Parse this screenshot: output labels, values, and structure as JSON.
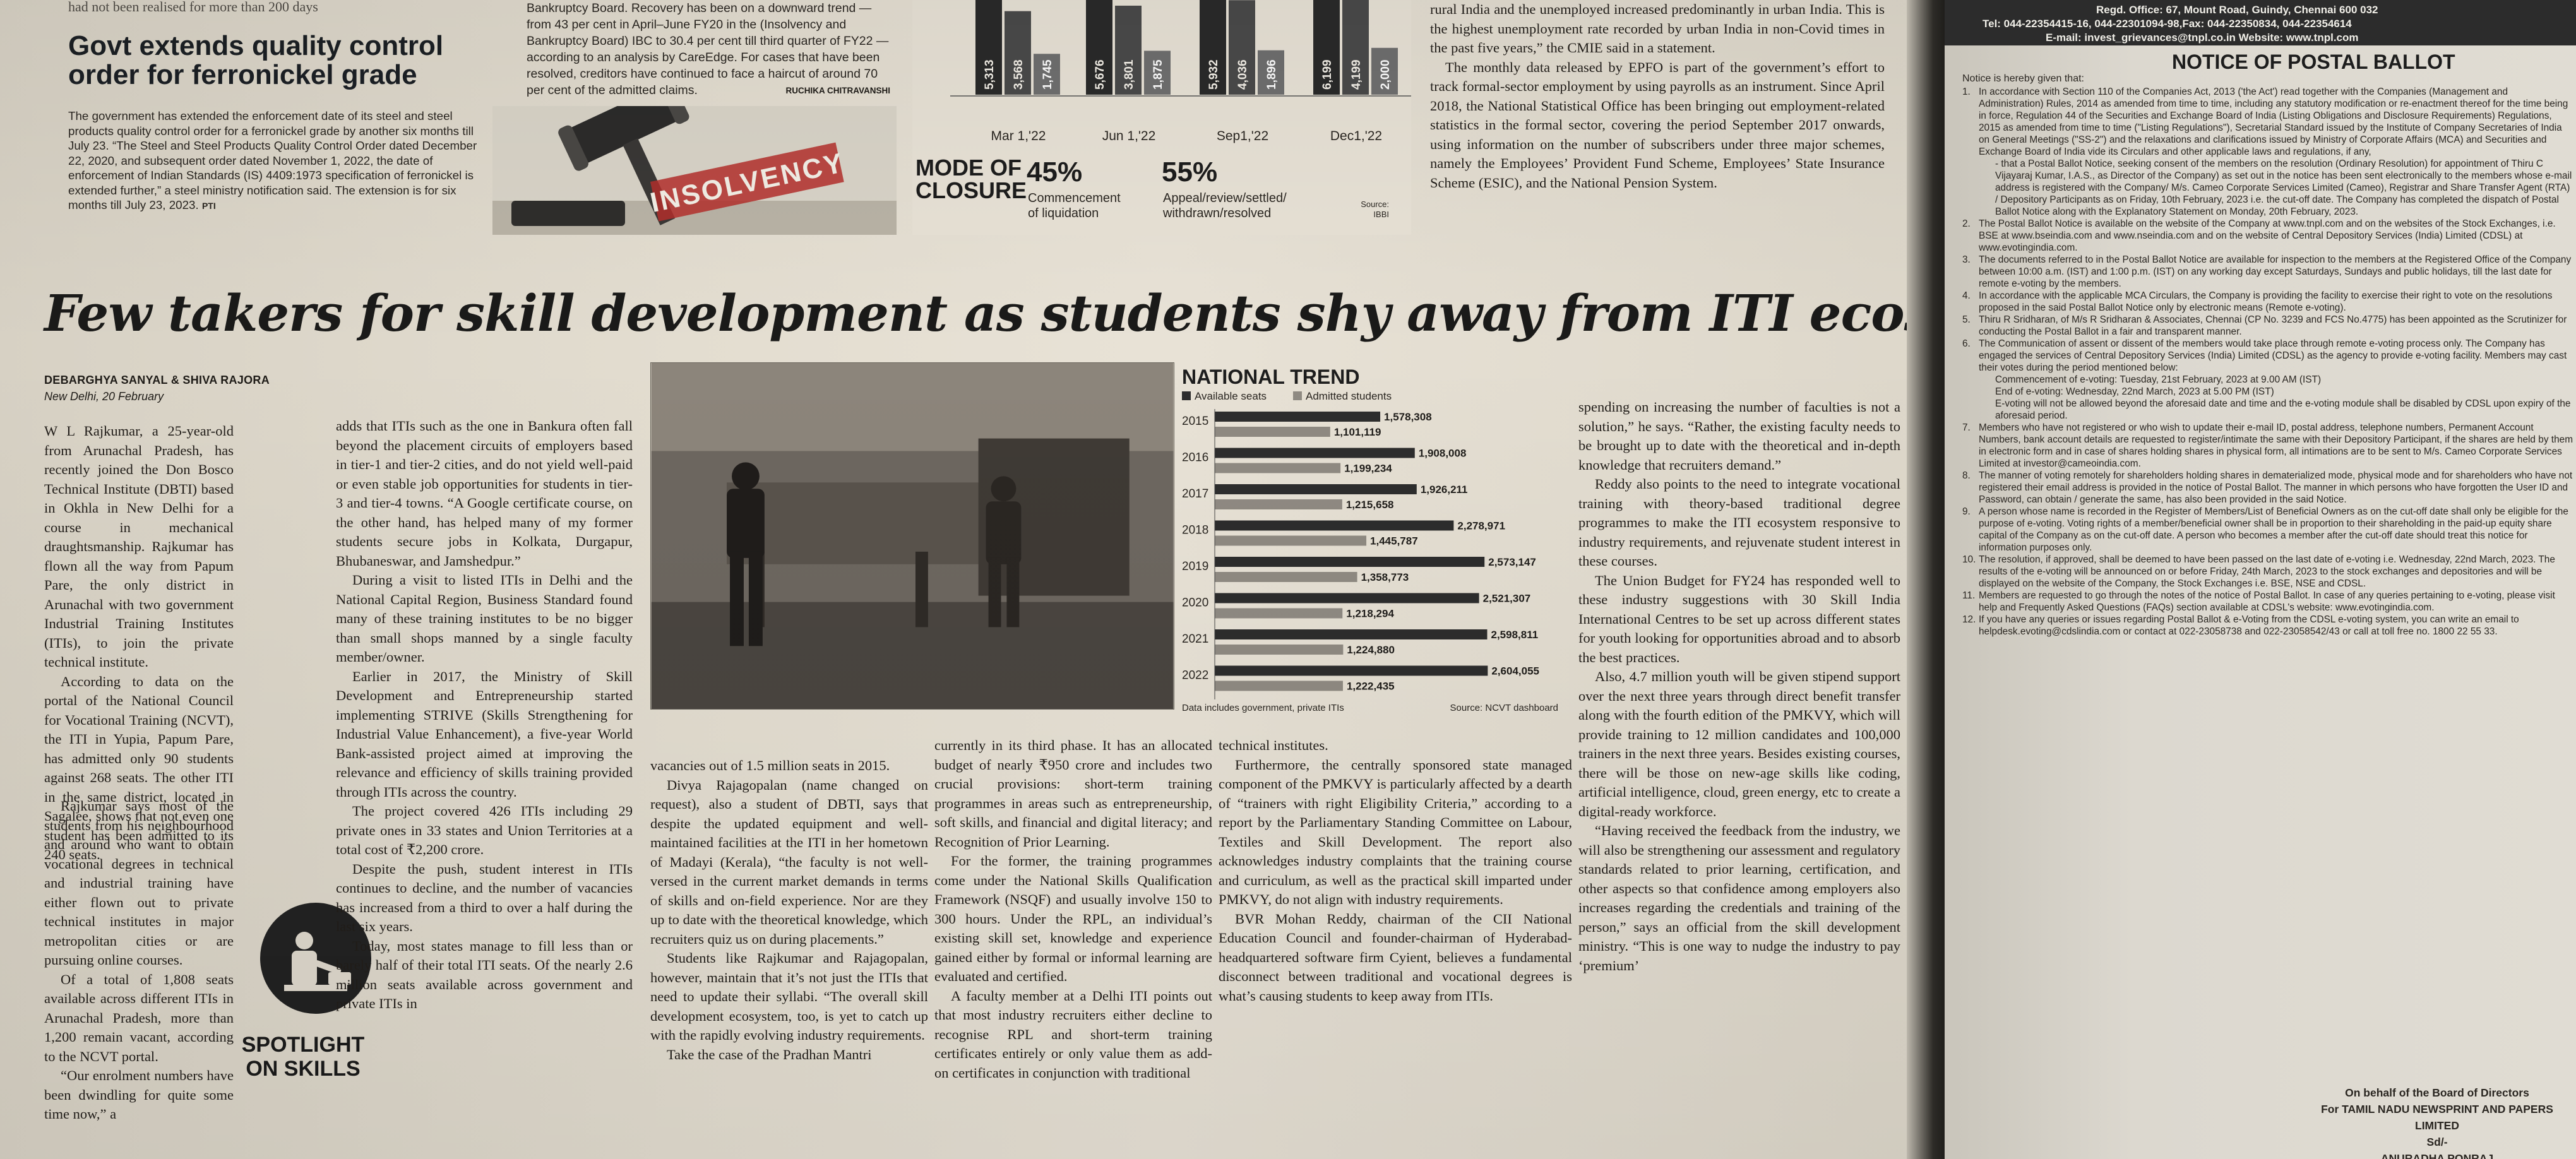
{
  "top_left": {
    "snippet": "had not been realised for more than 200 days",
    "headline": "Govt extends quality control order for ferronickel grade",
    "body": "The government has extended the enforcement date of its steel and steel products quality control order for a ferronickel grade by another six months till July 23. “The Steel and Steel Products Quality Control Order dated December 22, 2020, and subsequent order dated November 1, 2022, the date of enforcement of Indian Standards (IS) 4409:1973 specification of ferronickel is extended further,” a steel ministry notification said. The extension is for six months till July 23, 2023.",
    "credit": "PTI"
  },
  "top_ibc": {
    "body": "Bankruptcy Board. Recovery has been on a downward trend — from 43 per cent in April–June FY20 in the (Insolvency and Bankruptcy Board) IBC to 30.4 per cent till third quarter of FY22 — according to an analysis by CareEdge. For cases that have been resolved, creditors have continued to face a haircut of around 70 per cent of the admitted claims.",
    "byline": "RUCHIKA CHITRAVANSHI",
    "image_label": "INSOLVENCY"
  },
  "top_chart": {
    "mode_of_closure_title_1": "MODE OF",
    "mode_of_closure_title_2": "CLOSURE",
    "pct_1": "45%",
    "pct_1_label_1": "Commencement",
    "pct_1_label_2": "of liquidation",
    "pct_2": "55%",
    "pct_2_label_1": "Appeal/review/settled/",
    "pct_2_label_2": "withdrawn/resolved",
    "source_1": "Source:",
    "source_2": "IBBI"
  },
  "chart_data": [
    {
      "type": "bar",
      "categories": [
        "Mar 1,'22",
        "Jun 1,'22",
        "Sep1,'22",
        "Dec1,'22"
      ],
      "series": [
        {
          "values": [
            5313,
            5676,
            5932,
            6199
          ]
        },
        {
          "values": [
            3568,
            3801,
            4036,
            4199
          ]
        },
        {
          "values": [
            1745,
            1875,
            1896,
            2000
          ]
        }
      ],
      "value_labels": [
        [
          "5,313",
          "5,676",
          "5,932",
          "6,199"
        ],
        [
          "3,568",
          "3,801",
          "4,036",
          "4,199"
        ],
        [
          "1,745",
          "1,875",
          "1,896",
          "2,000"
        ]
      ]
    },
    {
      "type": "bar",
      "orientation": "horizontal",
      "title": "NATIONAL TREND",
      "categories": [
        "2015",
        "2016",
        "2017",
        "2018",
        "2019",
        "2020",
        "2021",
        "2022"
      ],
      "series": [
        {
          "name": "Available seats",
          "color": "#2d2d2d",
          "values": [
            1578308,
            1908008,
            1926211,
            2278971,
            2573147,
            2521307,
            2598811,
            2604055
          ],
          "labels": [
            "1,578,308",
            "1,908,008",
            "1,926,211",
            "2,278,971",
            "2,573,147",
            "2,521,307",
            "2,598,811",
            "2,604,055"
          ]
        },
        {
          "name": "Admitted students",
          "color": "#8f8a82",
          "values": [
            1101119,
            1199234,
            1215658,
            1445787,
            1358773,
            1218294,
            1224880,
            1222435
          ],
          "labels": [
            "1,101,119",
            "1,199,234",
            "1,215,658",
            "1,445,787",
            "1,358,773",
            "1,218,294",
            "1,224,880",
            "1,222,435"
          ]
        }
      ],
      "footnote": "Data includes government, private ITIs",
      "source": "Source: NCVT dashboard"
    }
  ],
  "top_unemp": {
    "p1": "rural India and the unemployed increased predominantly in urban India. This is the highest unemployment rate recorded by urban India in non-Covid times in the past five years,” the CMIE said in a statement.",
    "p2": "The monthly data released by EPFO is part of the government’s effort to track formal-sector employment by using payrolls as an instrument. Since April 2018, the National Statistical Office has been bringing out employment-related statistics in the formal sector, covering the period September 2017 onwards, using information on the number of subscribers under three major schemes, namely the Employees’ Provident Fund Scheme, Employees’ State Insurance Scheme (ESIC), and the National Pension System."
  },
  "story": {
    "headline": "Few takers for skill development as students shy away from ITI ecosystem",
    "byline": "DEBARGHYA SANYAL & SHIVA RAJORA",
    "dateline": "New Delhi, 20 February",
    "spotlight_1": "SPOTLIGHT",
    "spotlight_2": "ON SKILLS",
    "col1": [
      "W L Rajkumar, a 25-year-old from Arunachal Pradesh, has recently joined the Don Bosco Technical Institute (DBTI) based in Okhla in New Delhi for a course in mechanical draughtsmanship. Rajkumar has flown all the way from Papum Pare, the only district in Arunachal with two government Industrial Training Institutes (ITIs), to join the private technical institute.",
      "According to data on the portal of the National Council for Vocational Training (NCVT), the ITI in Yupia, Papum Pare, has admitted only 90 students against 268 seats. The other ITI in the same district, located in Sagalee, shows that not even one student has been admitted to its 240 seats."
    ],
    "col1b": [
      "Rajkumar says most of the students from his neighbourhood and around who want to obtain vocational degrees in technical and industrial training have either flown out to private technical institutes in major metropolitan cities or are pursuing online courses.",
      "Of a total of 1,808 seats available across different ITIs in Arunachal Pradesh, more than 1,200 remain vacant, according to the NCVT portal.",
      "“Our enrolment numbers have been dwindling for quite some time now,” a"
    ],
    "col2": [
      "adds that ITIs such as the one in Bankura often fall beyond the placement circuits of employers based in tier-1 and tier-2 cities, and do not yield well-paid or even stable job opportunities for students in tier-3 and tier-4 towns. “A Google certificate course, on the other hand, has helped many of my former students secure jobs in Kolkata, Durgapur, Bhubaneswar, and Jamshedpur.”",
      "During a visit to listed ITIs in Delhi and the National Capital Region, Business Standard found many of these training institutes to be no bigger than small shops manned by a single faculty member/owner.",
      "Earlier in 2017, the Ministry of Skill Development and Entrepreneurship started implementing STRIVE (Skills Strengthening for Industrial Value Enhancement), a five-year World Bank-assisted project aimed at improving the relevance and efficiency of skills training provided through ITIs across the country.",
      "The project covered 426 ITIs including 29 private ones in 33 states and Union Territories at a total cost of ₹2,200 crore.",
      "Despite the push, student interest in ITIs continues to decline, and the number of vacancies has increased from a third to over a half during the last six years.",
      "Today, most states manage to fill less than or barely half of their total ITI seats. Of the nearly 2.6 million seats available across government and private ITIs in"
    ],
    "col3": [
      "vacancies out of 1.5 million seats in 2015.",
      "Divya Rajagopalan (name changed on request), also a student of DBTI, says that despite the updated equipment and well-maintained facilities at the ITI in her hometown of Madayi (Kerala), “the faculty is not well-versed in the current market demands in terms of skills and on-field experience. Nor are they up to date with the theoretical knowledge, which recruiters quiz us on during placements.”",
      "Students like Rajkumar and Rajagopalan, however, maintain that it’s not just the ITIs that need to update their syllabi. “The overall skill development ecosystem, too, is yet to catch up with the rapidly evolving industry requirements.",
      "Take the case of the Pradhan Mantri"
    ],
    "col4": [
      "currently in its third phase. It has an allocated budget of nearly ₹950 crore and includes two crucial provisions: short-term training programmes in areas such as entrepreneurship, soft skills, and financial and digital literacy; and Recognition of Prior Learning.",
      "For the former, the training programmes come under the National Skills Qualification Framework (NSQF) and usually involve 150 to 300 hours. Under the RPL, an individual’s existing skill set, knowledge and experience gained either by formal or informal learning are evaluated and certified.",
      "A faculty member at a Delhi ITI points out that most industry recruiters either decline to recognise RPL and short-term training certificates entirely or only value them as add-on certificates in conjunction with traditional"
    ],
    "col5": [
      "technical institutes.",
      "Furthermore, the centrally sponsored state managed component of the PMKVY is particularly affected by a dearth of “trainers with right Eligibility Criteria,” according to a report by the Parliamentary Standing Committee on Labour, Textiles and Skill Development. The report also acknowledges industry complaints that the training course and curriculum, as well as the practical skill imparted under PMKVY, do not align with industry requirements.",
      "BVR Mohan Reddy, chairman of the CII National Education Council and founder-chairman of Hyderabad-headquartered software firm Cyient, believes a fundamental disconnect between traditional and vocational degrees is what’s causing students to keep away from ITIs."
    ],
    "col6": [
      "spending on increasing the number of faculties is not a solution,” he says. “Rather, the existing faculty needs to be brought up to date with the theoretical and in-depth knowledge that recruiters demand.”",
      "Reddy also points to the need to integrate vocational training with theory-based traditional degree programmes to make the ITI ecosystem responsive to industry requirements, and rejuvenate student interest in these courses.",
      "The Union Budget for FY24 has responded well to these industry suggestions with 30 Skill India International Centres to be set up across different states for youth looking for opportunities abroad and to absorb the best practices.",
      "Also, 4.7 million youth will be given stipend support over the next three years through direct benefit transfer along with the fourth edition of the PMKVY, which will provide training to 12 million candidates and 100,000 trainers in the next three years. Besides existing courses, there will be those on new-age skills like coding, artificial intelligence, cloud, green energy, etc to create a digital-ready workforce.",
      "“Having received the feedback from the industry, we will also be strengthening our assessment and regulatory standards related to prior learning, certification, and other aspects so that confidence among employers also increases regarding the credentials and training of the person,” says an official from the skill development ministry. “This is one way to nudge the industry to pay ‘premium’"
    ]
  },
  "notice": {
    "head_1": "Regd. Office: 67, Mount Road, Guindy, Chennai 600 032",
    "head_2": "Tel: 044-22354415-16, 044-22301094-98,Fax: 044-22350834, 044-22354614",
    "head_3": "E-mail: invest_grievances@tnpl.co.in Website: www.tnpl.com",
    "title": "NOTICE OF POSTAL BALLOT",
    "given": "Notice is hereby given that:",
    "items": [
      {
        "n": "1.",
        "t": "In accordance with Section 110 of the Companies Act, 2013 ('the Act') read together with the Companies (Management and Administration) Rules, 2014 as amended from time to time, including any statutory modification or re-enactment thereof for the time being in force, Regulation 44 of the Securities and Exchange Board of India (Listing Obligations and Disclosure Requirements) Regulations, 2015 as amended from time to time (\"Listing Regulations\"), Secretarial Standard issued by the Institute of Company Secretaries of India on General Meetings (\"SS-2\") and the relaxations and clarifications issued by Ministry of Corporate Affairs (MCA) and Securities and Exchange Board of India vide its Circulars and other applicable laws and regulations, if any,"
      },
      {
        "n": "",
        "t": "- that a Postal Ballot Notice, seeking consent of the members on the resolution (Ordinary Resolution) for appointment of Thiru C Vijayaraj Kumar, I.A.S., as Director of the Company) as set out in the notice has been sent electronically to the members whose e-mail address is registered with the Company/ M/s. Cameo Corporate Services Limited (Cameo), Registrar and Share Transfer Agent (RTA) / Depository Participants as on Friday, 10th February, 2023 i.e. the cut-off date. The Company has completed the dispatch of Postal Ballot Notice along with the Explanatory Statement on Monday, 20th February, 2023.",
        "sub": true
      },
      {
        "n": "2.",
        "t": "The Postal Ballot Notice is available on the website of the Company at www.tnpl.com and on the websites of the Stock Exchanges, i.e. BSE at www.bseindia.com and www.nseindia.com and on the website of Central Depository Services (India) Limited (CDSL) at www.evotingindia.com."
      },
      {
        "n": "3.",
        "t": "The documents referred to in the Postal Ballot Notice are available for inspection to the members at the Registered Office of the Company between 10:00 a.m. (IST) and 1:00 p.m. (IST) on any working day except Saturdays, Sundays and public holidays, till the last date for remote e-voting by the members."
      },
      {
        "n": "4.",
        "t": "In accordance with the applicable MCA Circulars, the Company is providing the facility to exercise their right to vote on the resolutions proposed in the said Postal Ballot Notice only by electronic means (Remote e-voting)."
      },
      {
        "n": "5.",
        "t": "Thiru R Sridharan, of M/s R Sridharan & Associates, Chennai (CP No. 3239 and FCS No.4775) has been appointed as the Scrutinizer for conducting the Postal Ballot in a fair and transparent manner."
      },
      {
        "n": "6.",
        "t": "The Communication of assent or dissent of the members would take place through remote e-voting process only. The Company has engaged the services of Central Depository Services (India) Limited (CDSL) as the agency to provide e-voting facility. Members may cast their votes during the period mentioned below:"
      },
      {
        "n": "",
        "t": "Commencement of e-voting: Tuesday, 21st February, 2023 at 9.00 AM (IST)",
        "sub": true
      },
      {
        "n": "",
        "t": "End of e-voting: Wednesday, 22nd March, 2023 at 5.00 PM (IST)",
        "sub": true
      },
      {
        "n": "",
        "t": "E-voting will not be allowed beyond the aforesaid date and time and the e-voting module shall be disabled by CDSL upon expiry of the aforesaid period.",
        "sub": true
      },
      {
        "n": "7.",
        "t": "Members who have not registered or who wish to update their e-mail ID, postal address, telephone numbers, Permanent Account Numbers, bank account details are requested to register/intimate the same with their Depository Participant, if the shares are held by them in electronic form and in case of shares holding shares in physical form, all intimations are to be sent to M/s. Cameo Corporate Services Limited at investor@cameoindia.com."
      },
      {
        "n": "8.",
        "t": "The manner of voting remotely for shareholders holding shares in dematerialized mode, physical mode and for shareholders who have not registered their email address is provided in the notice of Postal Ballot. The manner in which persons who have forgotten the User ID and Password, can obtain / generate the same, has also been provided in the said Notice."
      },
      {
        "n": "9.",
        "t": "A person whose name is recorded in the Register of Members/List of Beneficial Owners as on the cut-off date shall only be eligible for the purpose of e-voting. Voting rights of a member/beneficial owner shall be in proportion to their shareholding in the paid-up equity share capital of the Company as on the cut-off date. A person who becomes a member after the cut-off date should treat this notice for information purposes only."
      },
      {
        "n": "10.",
        "t": "The resolution, if approved, shall be deemed to have been passed on the last date of e-voting i.e. Wednesday, 22nd March, 2023. The results of the e-voting will be announced on or before Friday, 24th March, 2023 to the stock exchanges and depositories and will be displayed on the website of the Company, the Stock Exchanges i.e. BSE, NSE and CDSL."
      },
      {
        "n": "11.",
        "t": "Members are requested to go through the notes of the notice of Postal Ballot. In case of any queries pertaining to e-voting, please visit help and Frequently Asked Questions (FAQs) section available at CDSL's website: www.evotingindia.com."
      },
      {
        "n": "12.",
        "t": "If you have any queries or issues regarding Postal Ballot & e-Voting from the CDSL e-voting system, you can write an email to helpdesk.evoting@cdslindia.com or contact at 022-23058738 and 022-23058542/43 or call at toll free no. 1800 22 55 33."
      }
    ],
    "sign_1": "On behalf of the Board of Directors",
    "sign_2": "For TAMIL NADU NEWSPRINT AND PAPERS LIMITED",
    "sign_3": "Sd/-",
    "sign_4": "ANURADHA PONRAJ"
  }
}
